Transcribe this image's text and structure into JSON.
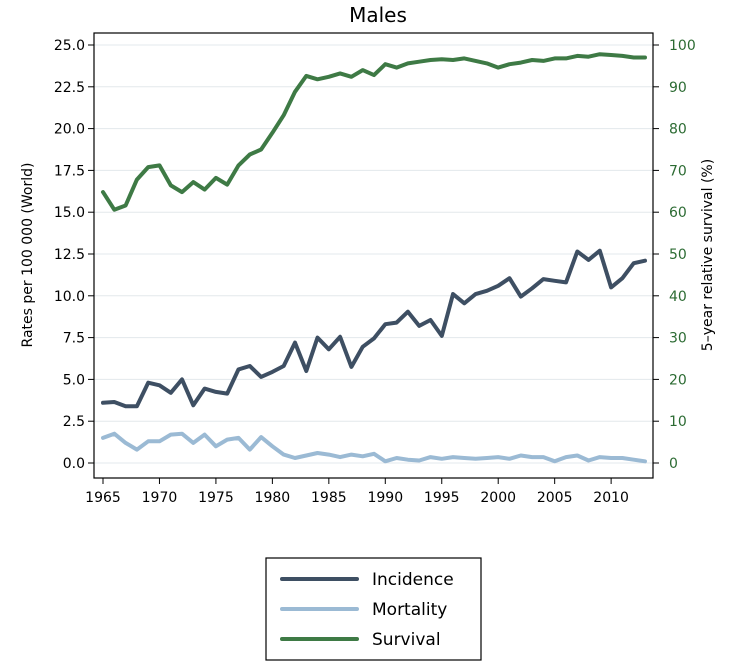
{
  "chart_data": {
    "type": "line",
    "title": "Males",
    "ylabel": "Rates per 100 000 (World)",
    "y2label": "5–year relative survival (%)",
    "xlim": [
      1965,
      2013
    ],
    "ylim": [
      0,
      25
    ],
    "y2lim": [
      0,
      100
    ],
    "x_ticks": [
      "1965",
      "1970",
      "1975",
      "1980",
      "1985",
      "1990",
      "1995",
      "2000",
      "2005",
      "2010"
    ],
    "y_ticks": [
      "0.0",
      "2.5",
      "5.0",
      "7.5",
      "10.0",
      "12.5",
      "15.0",
      "17.5",
      "20.0",
      "22.5",
      "25.0"
    ],
    "y2_ticks": [
      "0",
      "10",
      "20",
      "30",
      "40",
      "50",
      "60",
      "70",
      "80",
      "90",
      "100"
    ],
    "grid": "horizontal",
    "legend_position": "bottom",
    "x": [
      1965,
      1966,
      1967,
      1968,
      1969,
      1970,
      1971,
      1972,
      1973,
      1974,
      1975,
      1976,
      1977,
      1978,
      1979,
      1980,
      1981,
      1982,
      1983,
      1984,
      1985,
      1986,
      1987,
      1988,
      1989,
      1990,
      1991,
      1992,
      1993,
      1994,
      1995,
      1996,
      1997,
      1998,
      1999,
      2000,
      2001,
      2002,
      2003,
      2004,
      2005,
      2006,
      2007,
      2008,
      2009,
      2010,
      2011,
      2012,
      2013
    ],
    "series": [
      {
        "name": "Incidence",
        "axis": "left",
        "color": "#3e4f63",
        "values": [
          3.6,
          3.65,
          3.4,
          3.4,
          4.8,
          4.65,
          4.2,
          5.0,
          3.45,
          4.45,
          4.25,
          4.15,
          5.6,
          5.8,
          5.15,
          5.45,
          5.8,
          7.2,
          5.5,
          7.5,
          6.8,
          7.55,
          5.75,
          6.95,
          7.45,
          8.3,
          8.4,
          9.05,
          8.2,
          8.55,
          7.6,
          10.1,
          9.55,
          10.1,
          10.3,
          10.6,
          11.05,
          9.95,
          10.45,
          11.0,
          10.9,
          10.8,
          12.65,
          12.15,
          12.7,
          10.5,
          11.05,
          11.95,
          12.1
        ]
      },
      {
        "name": "Mortality",
        "axis": "left",
        "color": "#9bbad4",
        "values": [
          1.5,
          1.75,
          1.2,
          0.8,
          1.3,
          1.3,
          1.7,
          1.75,
          1.2,
          1.7,
          1.0,
          1.4,
          1.5,
          0.8,
          1.55,
          1.0,
          0.5,
          0.3,
          0.45,
          0.6,
          0.5,
          0.35,
          0.5,
          0.4,
          0.55,
          0.1,
          0.3,
          0.2,
          0.15,
          0.35,
          0.25,
          0.35,
          0.3,
          0.25,
          0.3,
          0.35,
          0.25,
          0.45,
          0.35,
          0.35,
          0.1,
          0.35,
          0.45,
          0.15,
          0.35,
          0.3,
          0.3,
          0.2,
          0.1
        ]
      },
      {
        "name": "Survival",
        "axis": "right",
        "color": "#3e7a45",
        "values": [
          64.8,
          60.6,
          61.6,
          67.8,
          70.8,
          71.2,
          66.4,
          64.8,
          67.2,
          65.4,
          68.2,
          66.6,
          71.2,
          73.8,
          75.0,
          79.0,
          83.2,
          88.8,
          92.6,
          91.8,
          92.4,
          93.2,
          92.4,
          94.0,
          92.8,
          95.4,
          94.6,
          95.6,
          96.0,
          96.4,
          96.6,
          96.4,
          96.8,
          96.2,
          95.6,
          94.6,
          95.4,
          95.8,
          96.4,
          96.2,
          96.8,
          96.8,
          97.4,
          97.2,
          97.8,
          97.6,
          97.4,
          97.0,
          97.0
        ]
      }
    ]
  }
}
